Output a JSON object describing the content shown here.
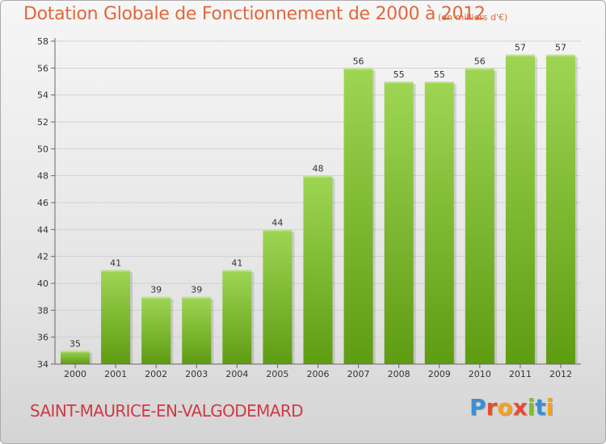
{
  "header": {
    "title": "Dotation Globale de Fonctionnement de 2000 à 2012",
    "unit": "(en milliers d'€)"
  },
  "footer": {
    "commune": "SAINT-MAURICE-EN-VALGODEMARD",
    "brand": "Proxiti",
    "brand_colors": [
      "#3a8fd6",
      "#e94b2f",
      "#f2a21b",
      "#e94b2f",
      "#7bbf2a",
      "#3a8fd6",
      "#f2a21b"
    ]
  },
  "colors": {
    "bar_top": "#9ed654",
    "bar_bottom": "#5e9c12",
    "title": "#e0683a",
    "commune": "#cf3a47"
  },
  "chart_data": {
    "type": "bar",
    "title": "Dotation Globale de Fonctionnement de 2000 à 2012",
    "categories": [
      "2000",
      "2001",
      "2002",
      "2003",
      "2004",
      "2005",
      "2006",
      "2007",
      "2008",
      "2009",
      "2010",
      "2011",
      "2012"
    ],
    "values": [
      35,
      41,
      39,
      39,
      41,
      44,
      48,
      56,
      55,
      55,
      56,
      57,
      57
    ],
    "ylim": [
      34,
      58
    ],
    "yticks": [
      34,
      36,
      38,
      40,
      42,
      44,
      46,
      48,
      50,
      52,
      54,
      56,
      58
    ],
    "grid": true,
    "xlabel": "",
    "ylabel": ""
  }
}
